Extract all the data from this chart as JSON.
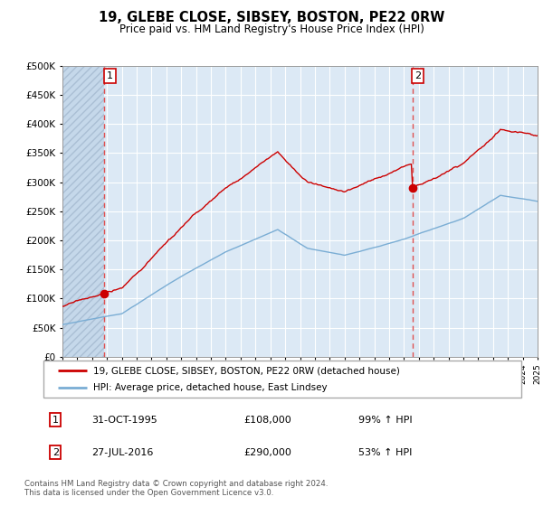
{
  "title": "19, GLEBE CLOSE, SIBSEY, BOSTON, PE22 0RW",
  "subtitle": "Price paid vs. HM Land Registry's House Price Index (HPI)",
  "legend_line1": "19, GLEBE CLOSE, SIBSEY, BOSTON, PE22 0RW (detached house)",
  "legend_line2": "HPI: Average price, detached house, East Lindsey",
  "annotation1_label": "1",
  "annotation1_date": "31-OCT-1995",
  "annotation1_price": "£108,000",
  "annotation1_hpi": "99% ↑ HPI",
  "annotation2_label": "2",
  "annotation2_date": "27-JUL-2016",
  "annotation2_price": "£290,000",
  "annotation2_hpi": "53% ↑ HPI",
  "footer": "Contains HM Land Registry data © Crown copyright and database right 2024.\nThis data is licensed under the Open Government Licence v3.0.",
  "plot_bg_color": "#dce9f5",
  "grid_color": "#ffffff",
  "red_line_color": "#cc0000",
  "blue_line_color": "#7aadd4",
  "dashed_vline_color": "#e05050",
  "ylim": [
    0,
    500000
  ],
  "yticks": [
    0,
    50000,
    100000,
    150000,
    200000,
    250000,
    300000,
    350000,
    400000,
    450000,
    500000
  ],
  "xstart_year": 1993,
  "xend_year": 2025,
  "purchase1_year": 1995.83,
  "purchase1_value": 108000,
  "purchase2_year": 2016.56,
  "purchase2_value": 290000
}
